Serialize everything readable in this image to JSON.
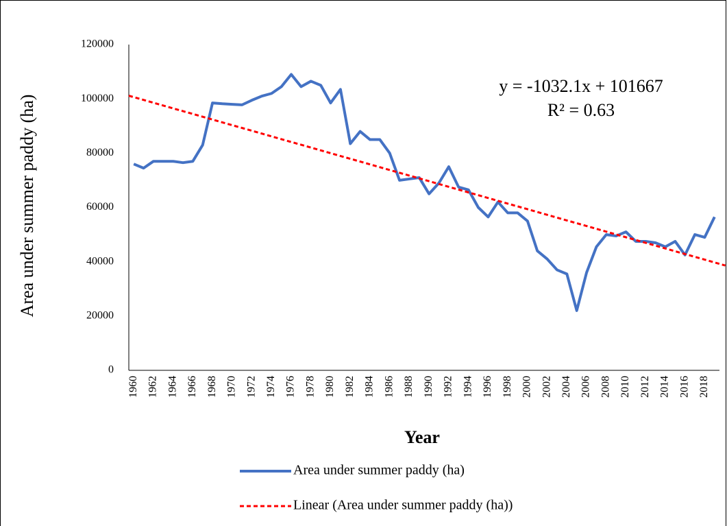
{
  "chart_data": {
    "type": "line",
    "x_label": "Year",
    "y_label": "Area under summer paddy (ha)",
    "categories": [
      "1960",
      null,
      "1962",
      null,
      "1964",
      null,
      "1966",
      null,
      "1968",
      null,
      "1970",
      null,
      "1972",
      null,
      "1974",
      null,
      "1976",
      null,
      "1978",
      null,
      "1980",
      null,
      "1982",
      null,
      "1984",
      null,
      "1986",
      null,
      "1988",
      null,
      "1990",
      null,
      "1992",
      null,
      "1994",
      null,
      "1996",
      null,
      "1998",
      null,
      "2000",
      null,
      "2002",
      null,
      "2004",
      null,
      "2006",
      null,
      "2008",
      null,
      "2010",
      null,
      "2012",
      null,
      "2014",
      null,
      "2016",
      null,
      "2018",
      null
    ],
    "series": [
      {
        "name": "Area under summer paddy (ha)",
        "color": "#4472c4",
        "values": [
          76000,
          74500,
          77000,
          77000,
          77000,
          76500,
          77000,
          83000,
          98500,
          98200,
          98000,
          97800,
          99500,
          101000,
          102000,
          104500,
          109000,
          104500,
          106500,
          105000,
          98500,
          103500,
          83500,
          88000,
          85000,
          85000,
          80000,
          70000,
          70500,
          71000,
          65000,
          69000,
          75000,
          67500,
          66500,
          60000,
          56500,
          62000,
          58000,
          58000,
          55000,
          44000,
          41000,
          37000,
          35500,
          22000,
          36000,
          45500,
          50000,
          49500,
          51000,
          47500,
          47500,
          47000,
          45500,
          47500,
          42500,
          50000,
          49000,
          56500
        ]
      }
    ],
    "trendline": {
      "name": "Linear (Area under summer paddy (ha))",
      "color": "#ff0000",
      "slope": -1032.1,
      "intercept": 101667,
      "equation": "y = -1032.1x + 101667",
      "r2_label": "R² = 0.63"
    },
    "ylim": [
      0,
      120000
    ],
    "yticks": [
      0,
      20000,
      40000,
      60000,
      80000,
      100000,
      120000
    ],
    "grid": false
  }
}
